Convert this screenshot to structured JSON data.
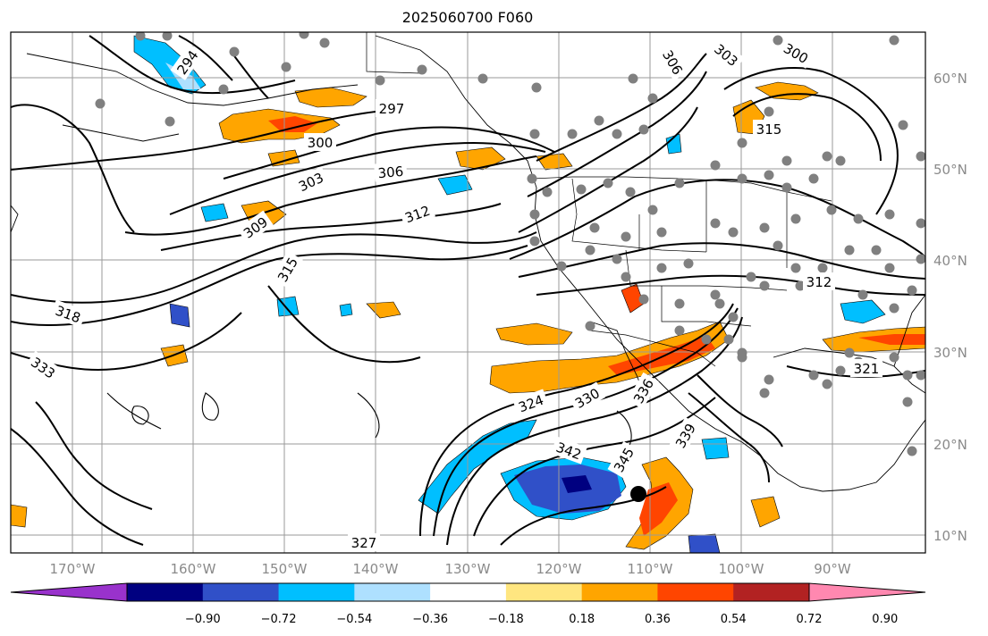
{
  "title": "2025060700 F060",
  "longitude_labels": [
    "170°W",
    "160°W",
    "150°W",
    "140°W",
    "130°W",
    "120°W",
    "110°W",
    "100°W",
    "90°W"
  ],
  "latitude_labels": [
    "60°N",
    "50°N",
    "40°N",
    "30°N",
    "20°N",
    "10°N"
  ],
  "colorbar": {
    "tick_labels": [
      "−0.90",
      "−0.72",
      "−0.54",
      "−0.36",
      "−0.18",
      "0.18",
      "0.36",
      "0.54",
      "0.72",
      "0.90"
    ],
    "colors": [
      "#9932cc",
      "#000080",
      "#3050c8",
      "#00bfff",
      "#aee0ff",
      "#ffffff",
      "#ffe680",
      "#ffa500",
      "#ff4500",
      "#b22222",
      "#ff88b0"
    ]
  },
  "contour_labels": [
    "294",
    "297",
    "300",
    "303",
    "306",
    "309",
    "312",
    "315",
    "318",
    "333",
    "324",
    "330",
    "336",
    "342",
    "345",
    "339",
    "327",
    "321",
    "312",
    "300",
    "303",
    "306",
    "315"
  ],
  "map": {
    "extent": {
      "lon_min": -178,
      "lon_max": -78,
      "lat_min": 8,
      "lat_max": 66
    }
  }
}
